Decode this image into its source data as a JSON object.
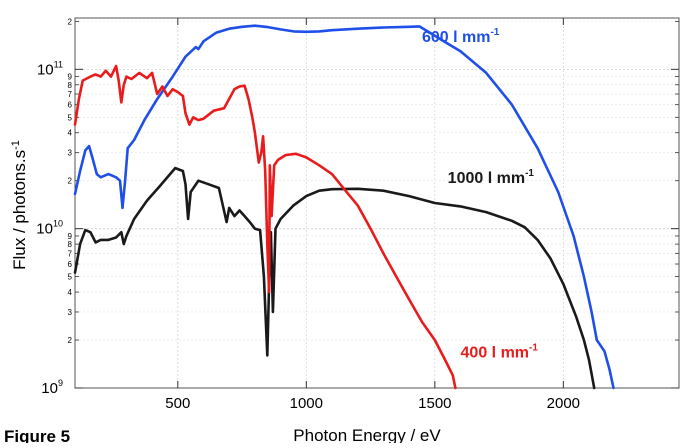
{
  "figure_caption": "Figure 5",
  "chart_data": {
    "type": "line",
    "title": "",
    "xlabel": "Photon Energy / eV",
    "ylabel": "Flux / photons.s",
    "ylabel_superscript": "-1",
    "xlim": [
      100,
      2450
    ],
    "ylim": [
      1000000000.0,
      210000000000.0
    ],
    "yscale": "log",
    "grid": true,
    "x_ticks": [
      {
        "value": 500,
        "label": "500"
      },
      {
        "value": 1000,
        "label": "1000"
      },
      {
        "value": 1500,
        "label": "1500"
      },
      {
        "value": 2000,
        "label": "2000"
      }
    ],
    "y_major_ticks": [
      {
        "value": 1000000000.0,
        "base": "10",
        "exp": "9"
      },
      {
        "value": 10000000000.0,
        "base": "10",
        "exp": "10"
      },
      {
        "value": 100000000000.0,
        "base": "10",
        "exp": "11"
      }
    ],
    "y_minor_ticks": [
      {
        "value": 2000000000.0,
        "label": "2"
      },
      {
        "value": 3000000000.0,
        "label": "3"
      },
      {
        "value": 4000000000.0,
        "label": "4"
      },
      {
        "value": 5000000000.0,
        "label": "5"
      },
      {
        "value": 6000000000.0,
        "label": "6"
      },
      {
        "value": 7000000000.0,
        "label": "7"
      },
      {
        "value": 8000000000.0,
        "label": "8"
      },
      {
        "value": 9000000000.0,
        "label": "9"
      },
      {
        "value": 20000000000.0,
        "label": "2"
      },
      {
        "value": 30000000000.0,
        "label": "3"
      },
      {
        "value": 40000000000.0,
        "label": "4"
      },
      {
        "value": 50000000000.0,
        "label": "5"
      },
      {
        "value": 60000000000.0,
        "label": "6"
      },
      {
        "value": 70000000000.0,
        "label": "7"
      },
      {
        "value": 80000000000.0,
        "label": "8"
      },
      {
        "value": 90000000000.0,
        "label": "9"
      },
      {
        "value": 200000000000.0,
        "label": "2"
      }
    ],
    "series": [
      {
        "name": "600 l mm",
        "name_superscript": "-1",
        "color": "#1f4fe8",
        "label_at": [
          1450,
          148000000000.0
        ],
        "points": [
          [
            100,
            16500000000.0
          ],
          [
            120,
            23000000000.0
          ],
          [
            140,
            31000000000.0
          ],
          [
            155,
            33000000000.0
          ],
          [
            170,
            27000000000.0
          ],
          [
            185,
            22000000000.0
          ],
          [
            200,
            21000000000.0
          ],
          [
            230,
            22000000000.0
          ],
          [
            260,
            21000000000.0
          ],
          [
            275,
            20000000000.0
          ],
          [
            285,
            13500000000.0
          ],
          [
            295,
            20000000000.0
          ],
          [
            305,
            32000000000.0
          ],
          [
            330,
            36000000000.0
          ],
          [
            370,
            48000000000.0
          ],
          [
            420,
            65000000000.0
          ],
          [
            480,
            90000000000.0
          ],
          [
            530,
            120000000000.0
          ],
          [
            570,
            138000000000.0
          ],
          [
            580,
            134000000000.0
          ],
          [
            600,
            150000000000.0
          ],
          [
            650,
            170000000000.0
          ],
          [
            700,
            180000000000.0
          ],
          [
            750,
            185000000000.0
          ],
          [
            800,
            188000000000.0
          ],
          [
            850,
            184000000000.0
          ],
          [
            900,
            178000000000.0
          ],
          [
            950,
            173000000000.0
          ],
          [
            1000,
            172000000000.0
          ],
          [
            1050,
            173000000000.0
          ],
          [
            1100,
            176000000000.0
          ],
          [
            1200,
            180000000000.0
          ],
          [
            1300,
            183000000000.0
          ],
          [
            1400,
            185000000000.0
          ],
          [
            1440,
            186000000000.0
          ],
          [
            1480,
            170000000000.0
          ],
          [
            1550,
            145000000000.0
          ],
          [
            1600,
            130000000000.0
          ],
          [
            1700,
            95000000000.0
          ],
          [
            1800,
            60000000000.0
          ],
          [
            1900,
            32000000000.0
          ],
          [
            1980,
            17000000000.0
          ],
          [
            2040,
            9000000000.0
          ],
          [
            2080,
            5000000000.0
          ],
          [
            2110,
            3000000000.0
          ],
          [
            2130,
            2000000000.0
          ],
          [
            2160,
            1700000000.0
          ],
          [
            2180,
            1300000000.0
          ],
          [
            2195,
            1000000000.0
          ]
        ]
      },
      {
        "name": "1000 l mm",
        "name_superscript": "-1",
        "color": "#1a1a1a",
        "label_at": [
          1550,
          19300000000.0
        ],
        "points": [
          [
            100,
            5300000000.0
          ],
          [
            120,
            8000000000.0
          ],
          [
            140,
            9800000000.0
          ],
          [
            160,
            9500000000.0
          ],
          [
            180,
            8200000000.0
          ],
          [
            200,
            8500000000.0
          ],
          [
            230,
            8500000000.0
          ],
          [
            260,
            8800000000.0
          ],
          [
            280,
            9500000000.0
          ],
          [
            290,
            8000000000.0
          ],
          [
            300,
            9000000000.0
          ],
          [
            330,
            11500000000.0
          ],
          [
            380,
            15000000000.0
          ],
          [
            430,
            18500000000.0
          ],
          [
            490,
            24000000000.0
          ],
          [
            520,
            23000000000.0
          ],
          [
            530,
            19000000000.0
          ],
          [
            540,
            11500000000.0
          ],
          [
            550,
            17000000000.0
          ],
          [
            580,
            20000000000.0
          ],
          [
            620,
            19000000000.0
          ],
          [
            660,
            18000000000.0
          ],
          [
            690,
            11000000000.0
          ],
          [
            700,
            13500000000.0
          ],
          [
            720,
            12000000000.0
          ],
          [
            740,
            13000000000.0
          ],
          [
            760,
            12000000000.0
          ],
          [
            780,
            11000000000.0
          ],
          [
            800,
            10000000000.0
          ],
          [
            820,
            9800000000.0
          ],
          [
            835,
            5000000000.0
          ],
          [
            848,
            1600000000.0
          ],
          [
            856,
            5000000000.0
          ],
          [
            862,
            9500000000.0
          ],
          [
            870,
            3000000000.0
          ],
          [
            880,
            10000000000.0
          ],
          [
            900,
            11500000000.0
          ],
          [
            950,
            14000000000.0
          ],
          [
            1000,
            16000000000.0
          ],
          [
            1050,
            17300000000.0
          ],
          [
            1100,
            17700000000.0
          ],
          [
            1200,
            17800000000.0
          ],
          [
            1300,
            17300000000.0
          ],
          [
            1400,
            16000000000.0
          ],
          [
            1500,
            14500000000.0
          ],
          [
            1600,
            13800000000.0
          ],
          [
            1700,
            12700000000.0
          ],
          [
            1800,
            11200000000.0
          ],
          [
            1850,
            10200000000.0
          ],
          [
            1900,
            8500000000.0
          ],
          [
            1950,
            6500000000.0
          ],
          [
            2000,
            4500000000.0
          ],
          [
            2050,
            2800000000.0
          ],
          [
            2080,
            2000000000.0
          ],
          [
            2100,
            1500000000.0
          ],
          [
            2120,
            1000000000.0
          ]
        ]
      },
      {
        "name": "400 l mm",
        "name_superscript": "-1",
        "color": "#e81c1c",
        "label_at": [
          1600,
          1550000000.0
        ],
        "points": [
          [
            100,
            45000000000.0
          ],
          [
            115,
            65000000000.0
          ],
          [
            130,
            85000000000.0
          ],
          [
            160,
            90000000000.0
          ],
          [
            180,
            93000000000.0
          ],
          [
            200,
            90000000000.0
          ],
          [
            220,
            98000000000.0
          ],
          [
            240,
            90000000000.0
          ],
          [
            260,
            105000000000.0
          ],
          [
            270,
            85000000000.0
          ],
          [
            280,
            62000000000.0
          ],
          [
            290,
            80000000000.0
          ],
          [
            300,
            90000000000.0
          ],
          [
            320,
            87000000000.0
          ],
          [
            350,
            95000000000.0
          ],
          [
            380,
            88000000000.0
          ],
          [
            400,
            95000000000.0
          ],
          [
            420,
            70000000000.0
          ],
          [
            440,
            78000000000.0
          ],
          [
            460,
            68000000000.0
          ],
          [
            480,
            75000000000.0
          ],
          [
            500,
            72000000000.0
          ],
          [
            520,
            68000000000.0
          ],
          [
            530,
            53000000000.0
          ],
          [
            545,
            45000000000.0
          ],
          [
            560,
            50000000000.0
          ],
          [
            580,
            48000000000.0
          ],
          [
            600,
            49000000000.0
          ],
          [
            640,
            55000000000.0
          ],
          [
            680,
            57000000000.0
          ],
          [
            720,
            75000000000.0
          ],
          [
            740,
            78000000000.0
          ],
          [
            760,
            79000000000.0
          ],
          [
            775,
            65000000000.0
          ],
          [
            790,
            50000000000.0
          ],
          [
            800,
            40000000000.0
          ],
          [
            815,
            26000000000.0
          ],
          [
            825,
            30000000000.0
          ],
          [
            832,
            38000000000.0
          ],
          [
            840,
            23000000000.0
          ],
          [
            848,
            8000000000.0
          ],
          [
            855,
            4000000000.0
          ],
          [
            858,
            25000000000.0
          ],
          [
            865,
            12000000000.0
          ],
          [
            875,
            25000000000.0
          ],
          [
            890,
            27000000000.0
          ],
          [
            920,
            29000000000.0
          ],
          [
            960,
            29500000000.0
          ],
          [
            1000,
            28000000000.0
          ],
          [
            1050,
            25000000000.0
          ],
          [
            1100,
            22000000000.0
          ],
          [
            1150,
            17500000000.0
          ],
          [
            1200,
            14000000000.0
          ],
          [
            1250,
            10000000000.0
          ],
          [
            1300,
            7000000000.0
          ],
          [
            1350,
            5000000000.0
          ],
          [
            1400,
            3600000000.0
          ],
          [
            1450,
            2600000000.0
          ],
          [
            1500,
            2000000000.0
          ],
          [
            1540,
            1500000000.0
          ],
          [
            1570,
            1200000000.0
          ],
          [
            1580,
            1000000000.0
          ]
        ]
      }
    ]
  }
}
